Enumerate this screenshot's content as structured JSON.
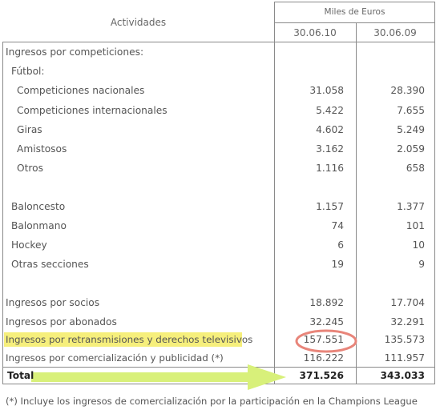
{
  "header": {
    "activities": "Actividades",
    "units": "Miles de Euros",
    "col1": "30.06.10",
    "col2": "30.06.09"
  },
  "rows": [
    {
      "label": "Ingresos por competiciones:",
      "v1": "",
      "v2": ""
    },
    {
      "label": "Fútbol:",
      "v1": "",
      "v2": ""
    },
    {
      "label": "Competiciones nacionales",
      "v1": "31.058",
      "v2": "28.390"
    },
    {
      "label": "Competiciones internacionales",
      "v1": "5.422",
      "v2": "7.655"
    },
    {
      "label": "Giras",
      "v1": "4.602",
      "v2": "5.249"
    },
    {
      "label": "Amistosos",
      "v1": "3.162",
      "v2": "2.059"
    },
    {
      "label": "Otros",
      "v1": "1.116",
      "v2": "658"
    },
    {
      "label": "Baloncesto",
      "v1": "1.157",
      "v2": "1.377"
    },
    {
      "label": "Balonmano",
      "v1": "74",
      "v2": "101"
    },
    {
      "label": "Hockey",
      "v1": "6",
      "v2": "10"
    },
    {
      "label": "Otras secciones",
      "v1": "19",
      "v2": "9"
    },
    {
      "label": "Ingresos por socios",
      "v1": "18.892",
      "v2": "17.704"
    },
    {
      "label": "Ingresos por abonados",
      "v1": "32.245",
      "v2": "32.291"
    },
    {
      "label": "Ingresos por retransmisiones y derechos televisivos",
      "v1": "157.551",
      "v2": "135.573"
    },
    {
      "label": "Ingresos por comercialización y publicidad (*)",
      "v1": "116.222",
      "v2": "111.957"
    }
  ],
  "total": {
    "label": "Total",
    "v1": "371.526",
    "v2": "343.033"
  },
  "footnote": "(*) Incluye los ingresos de comercialización por la participación en la Champions League",
  "colors": {
    "highlight": "#f6ef7c",
    "arrow": "#d8f07a",
    "circle": "#e8857a"
  }
}
